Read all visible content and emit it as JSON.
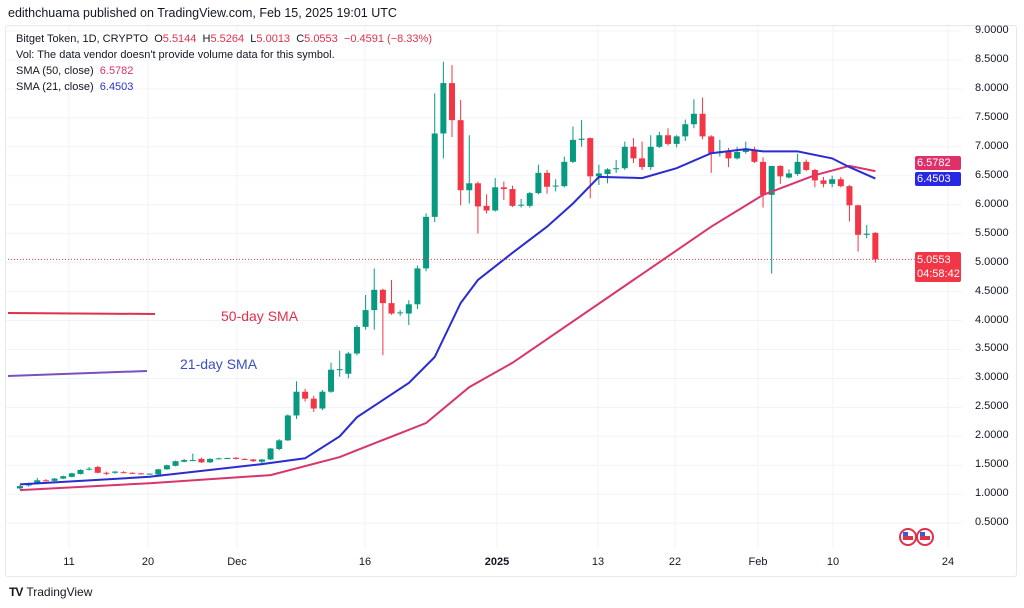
{
  "publisher": "edithchuama published on TradingView.com, Feb 15, 2025 19:01 UTC",
  "legend": {
    "symbol": "Bitget Token, 1D, CRYPTO",
    "open_label": "O",
    "open": "5.5144",
    "high_label": "H",
    "high": "5.5264",
    "low_label": "L",
    "low": "5.0013",
    "close_label": "C",
    "close": "5.0553",
    "change": "−0.4591 (−8.33%)",
    "vol_note": "Vol: The data vendor doesn't provide volume data for this symbol.",
    "sma50_label": "SMA (50, close)",
    "sma50_value": "6.5782",
    "sma21_label": "SMA (21, close)",
    "sma21_value": "6.4503"
  },
  "price_tags": {
    "sma50": "6.5782",
    "sma21": "6.4503",
    "last": "5.0553",
    "countdown": "04:58:42"
  },
  "annotations": {
    "sma50": "50-day SMA",
    "sma21": "21-day SMA"
  },
  "footer": {
    "brand": "TradingView"
  },
  "colors": {
    "up": "#089981",
    "down": "#f23645",
    "sma50": "#d9356b",
    "sma21": "#2b2bd0",
    "grid": "#f0f3fa"
  },
  "chart_data": {
    "type": "candlestick",
    "title": "Bitget Token, 1D, CRYPTO",
    "y_ticks": [
      "9.0000",
      "8.5000",
      "8.0000",
      "7.5000",
      "7.0000",
      "6.5000",
      "6.0000",
      "5.5000",
      "5.0000",
      "4.5000",
      "4.0000",
      "3.5000",
      "3.0000",
      "2.5000",
      "2.0000",
      "1.5000",
      "1.0000",
      "0.5000"
    ],
    "x_ticks": [
      "11",
      "20",
      "Dec",
      "16",
      "2025",
      "13",
      "22",
      "Feb",
      "10",
      "24"
    ],
    "ylim": [
      0.5,
      9.0
    ],
    "ohlc": [
      [
        1.1,
        1.16,
        1.08,
        1.14
      ],
      [
        1.15,
        1.2,
        1.13,
        1.18
      ],
      [
        1.18,
        1.28,
        1.17,
        1.24
      ],
      [
        1.24,
        1.26,
        1.22,
        1.23
      ],
      [
        1.23,
        1.28,
        1.22,
        1.27
      ],
      [
        1.27,
        1.32,
        1.26,
        1.31
      ],
      [
        1.3,
        1.37,
        1.29,
        1.36
      ],
      [
        1.35,
        1.43,
        1.34,
        1.42
      ],
      [
        1.43,
        1.47,
        1.41,
        1.44
      ],
      [
        1.47,
        1.49,
        1.36,
        1.37
      ],
      [
        1.37,
        1.39,
        1.33,
        1.36
      ],
      [
        1.37,
        1.4,
        1.35,
        1.39
      ],
      [
        1.38,
        1.4,
        1.36,
        1.37
      ],
      [
        1.37,
        1.38,
        1.35,
        1.36
      ],
      [
        1.36,
        1.37,
        1.34,
        1.35
      ],
      [
        1.35,
        1.36,
        1.34,
        1.355
      ],
      [
        1.34,
        1.44,
        1.33,
        1.43
      ],
      [
        1.43,
        1.51,
        1.42,
        1.5
      ],
      [
        1.49,
        1.58,
        1.48,
        1.57
      ],
      [
        1.56,
        1.61,
        1.55,
        1.59
      ],
      [
        1.58,
        1.7,
        1.57,
        1.59
      ],
      [
        1.61,
        1.63,
        1.54,
        1.55
      ],
      [
        1.55,
        1.62,
        1.54,
        1.61
      ],
      [
        1.61,
        1.63,
        1.6,
        1.62
      ],
      [
        1.62,
        1.63,
        1.61,
        1.625
      ],
      [
        1.63,
        1.64,
        1.6,
        1.61
      ],
      [
        1.61,
        1.62,
        1.59,
        1.6
      ],
      [
        1.6,
        1.61,
        1.56,
        1.57
      ],
      [
        1.56,
        1.61,
        1.5,
        1.6
      ],
      [
        1.6,
        1.8,
        1.59,
        1.79
      ],
      [
        1.78,
        1.95,
        1.76,
        1.93
      ],
      [
        1.93,
        2.38,
        1.92,
        2.36
      ],
      [
        2.36,
        2.95,
        2.3,
        2.77
      ],
      [
        2.77,
        2.82,
        2.6,
        2.65
      ],
      [
        2.65,
        2.7,
        2.42,
        2.48
      ],
      [
        2.48,
        2.8,
        2.45,
        2.77
      ],
      [
        2.77,
        3.27,
        2.75,
        3.15
      ],
      [
        3.15,
        3.48,
        3.03,
        3.16
      ],
      [
        3.08,
        3.46,
        3.0,
        3.43
      ],
      [
        3.43,
        3.92,
        3.4,
        3.89
      ],
      [
        3.89,
        4.44,
        3.84,
        4.18
      ],
      [
        4.18,
        4.9,
        3.84,
        4.53
      ],
      [
        4.53,
        4.55,
        3.4,
        4.3
      ],
      [
        4.3,
        4.7,
        4.1,
        4.12
      ],
      [
        4.13,
        4.18,
        4.08,
        4.14
      ],
      [
        4.12,
        4.35,
        3.92,
        4.28
      ],
      [
        4.28,
        4.95,
        4.2,
        4.9
      ],
      [
        4.9,
        5.85,
        4.85,
        5.79
      ],
      [
        5.79,
        7.92,
        5.7,
        7.23
      ],
      [
        7.23,
        8.47,
        6.8,
        8.1
      ],
      [
        8.1,
        8.41,
        7.17,
        7.46
      ],
      [
        7.46,
        7.81,
        5.99,
        6.25
      ],
      [
        6.25,
        7.2,
        6.02,
        6.37
      ],
      [
        6.37,
        6.4,
        5.5,
        5.97
      ],
      [
        5.98,
        6.18,
        5.85,
        5.9
      ],
      [
        5.9,
        6.46,
        5.88,
        6.3
      ],
      [
        6.3,
        6.4,
        6.08,
        6.27
      ],
      [
        6.27,
        6.33,
        5.96,
        5.98
      ],
      [
        5.99,
        6.1,
        5.95,
        6.0
      ],
      [
        5.98,
        6.22,
        5.95,
        6.2
      ],
      [
        6.2,
        6.69,
        6.18,
        6.55
      ],
      [
        6.55,
        6.6,
        6.19,
        6.31
      ],
      [
        6.32,
        6.44,
        6.23,
        6.33
      ],
      [
        6.32,
        6.83,
        6.3,
        6.74
      ],
      [
        6.74,
        7.35,
        6.72,
        7.12
      ],
      [
        7.12,
        7.46,
        7.0,
        7.14
      ],
      [
        7.15,
        7.16,
        6.11,
        6.49
      ],
      [
        6.49,
        6.69,
        6.34,
        6.54
      ],
      [
        6.53,
        6.63,
        6.37,
        6.61
      ],
      [
        6.62,
        6.77,
        6.55,
        6.63
      ],
      [
        6.63,
        7.09,
        6.6,
        7.0
      ],
      [
        7.0,
        7.15,
        6.72,
        6.8
      ],
      [
        6.8,
        7.09,
        6.6,
        6.65
      ],
      [
        6.65,
        7.2,
        6.6,
        7.0
      ],
      [
        7.0,
        7.26,
        6.98,
        7.2
      ],
      [
        7.2,
        7.32,
        7.02,
        7.05
      ],
      [
        7.05,
        7.2,
        6.99,
        7.18
      ],
      [
        7.18,
        7.47,
        7.1,
        7.39
      ],
      [
        7.39,
        7.82,
        7.32,
        7.57
      ],
      [
        7.57,
        7.85,
        7.13,
        7.18
      ],
      [
        7.18,
        7.2,
        6.55,
        6.89
      ],
      [
        6.89,
        7.12,
        6.83,
        6.92
      ],
      [
        6.92,
        6.98,
        6.65,
        6.8
      ],
      [
        6.8,
        7.0,
        6.78,
        6.91
      ],
      [
        6.91,
        7.09,
        6.88,
        6.95
      ],
      [
        6.95,
        7.0,
        6.72,
        6.74
      ],
      [
        6.74,
        6.82,
        5.95,
        6.17
      ],
      [
        6.17,
        6.67,
        4.81,
        6.67
      ],
      [
        6.67,
        6.68,
        6.36,
        6.49
      ],
      [
        6.47,
        6.61,
        6.45,
        6.54
      ],
      [
        6.53,
        6.88,
        6.5,
        6.74
      ],
      [
        6.74,
        6.78,
        6.58,
        6.6
      ],
      [
        6.6,
        6.62,
        6.3,
        6.42
      ],
      [
        6.42,
        6.48,
        6.3,
        6.36
      ],
      [
        6.36,
        6.5,
        6.3,
        6.44
      ],
      [
        6.44,
        6.48,
        6.3,
        6.32
      ],
      [
        6.32,
        6.34,
        5.71,
        5.99
      ],
      [
        5.99,
        6.0,
        5.19,
        5.48
      ],
      [
        5.48,
        5.65,
        5.42,
        5.5
      ],
      [
        5.5144,
        5.5264,
        5.0013,
        5.0553
      ]
    ],
    "sma21": [
      [
        0,
        1.17
      ],
      [
        15,
        1.3
      ],
      [
        28,
        1.52
      ],
      [
        33,
        1.62
      ],
      [
        37,
        2.0
      ],
      [
        39,
        2.33
      ],
      [
        45,
        2.92
      ],
      [
        48,
        3.37
      ],
      [
        51,
        4.3
      ],
      [
        53,
        4.7
      ],
      [
        57,
        5.17
      ],
      [
        61,
        5.62
      ],
      [
        64,
        6.02
      ],
      [
        67,
        6.48
      ],
      [
        72,
        6.46
      ],
      [
        76,
        6.63
      ],
      [
        80,
        6.89
      ],
      [
        84,
        6.96
      ],
      [
        86,
        6.92
      ],
      [
        90,
        6.92
      ],
      [
        94,
        6.8
      ],
      [
        96,
        6.65
      ],
      [
        99,
        6.45
      ]
    ],
    "sma50": [
      [
        0,
        1.07
      ],
      [
        15,
        1.19
      ],
      [
        29,
        1.33
      ],
      [
        37,
        1.64
      ],
      [
        39,
        1.76
      ],
      [
        47,
        2.23
      ],
      [
        52,
        2.85
      ],
      [
        57,
        3.27
      ],
      [
        71,
        4.7
      ],
      [
        80,
        5.62
      ],
      [
        86,
        6.17
      ],
      [
        92,
        6.51
      ],
      [
        96,
        6.67
      ],
      [
        99,
        6.58
      ]
    ],
    "last_price": 5.0553
  }
}
